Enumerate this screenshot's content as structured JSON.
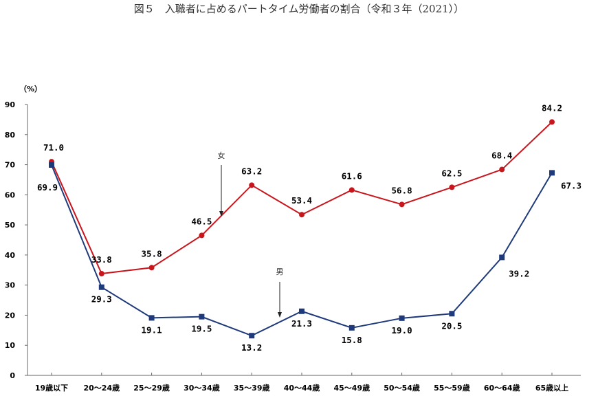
{
  "chart_data": {
    "type": "line",
    "title": "図５　入職者に占めるパートタイム労働者の割合（令和３年（2021））",
    "ylabel": "（%）",
    "xlabel": "",
    "ylim": [
      0,
      90
    ],
    "yticks": [
      0,
      10,
      20,
      30,
      40,
      50,
      60,
      70,
      80,
      90
    ],
    "grid": false,
    "categories": [
      "19歳以下",
      "20～24歳",
      "25～29歳",
      "30～34歳",
      "35～39歳",
      "40～44歳",
      "45～49歳",
      "50～54歳",
      "55～59歳",
      "60～64歳",
      "65歳以上"
    ],
    "series": [
      {
        "name": "女",
        "color": "#c8161d",
        "marker": "circle",
        "values": [
          71.0,
          33.8,
          35.8,
          46.5,
          63.2,
          53.4,
          61.6,
          56.8,
          62.5,
          68.4,
          84.2
        ]
      },
      {
        "name": "男",
        "color": "#1f3a7a",
        "marker": "square",
        "values": [
          69.9,
          29.3,
          19.1,
          19.5,
          13.2,
          21.3,
          15.8,
          19.0,
          20.5,
          39.2,
          67.3
        ]
      }
    ],
    "value_labels": {
      "女": [
        "71.0",
        "33.8",
        "35.8",
        "46.5",
        "63.2",
        "53.4",
        "61.6",
        "56.8",
        "62.5",
        "68.4",
        "84.2"
      ],
      "男": [
        "69.9",
        "29.3",
        "19.1",
        "19.5",
        "13.2",
        "21.3",
        "15.8",
        "19.0",
        "20.5",
        "39.2",
        "67.3"
      ]
    },
    "annotations": [
      {
        "text": "女",
        "points_to_series": "女",
        "category": "30～34歳"
      },
      {
        "text": "男",
        "points_to_series": "男",
        "category": "35～39歳"
      }
    ]
  }
}
